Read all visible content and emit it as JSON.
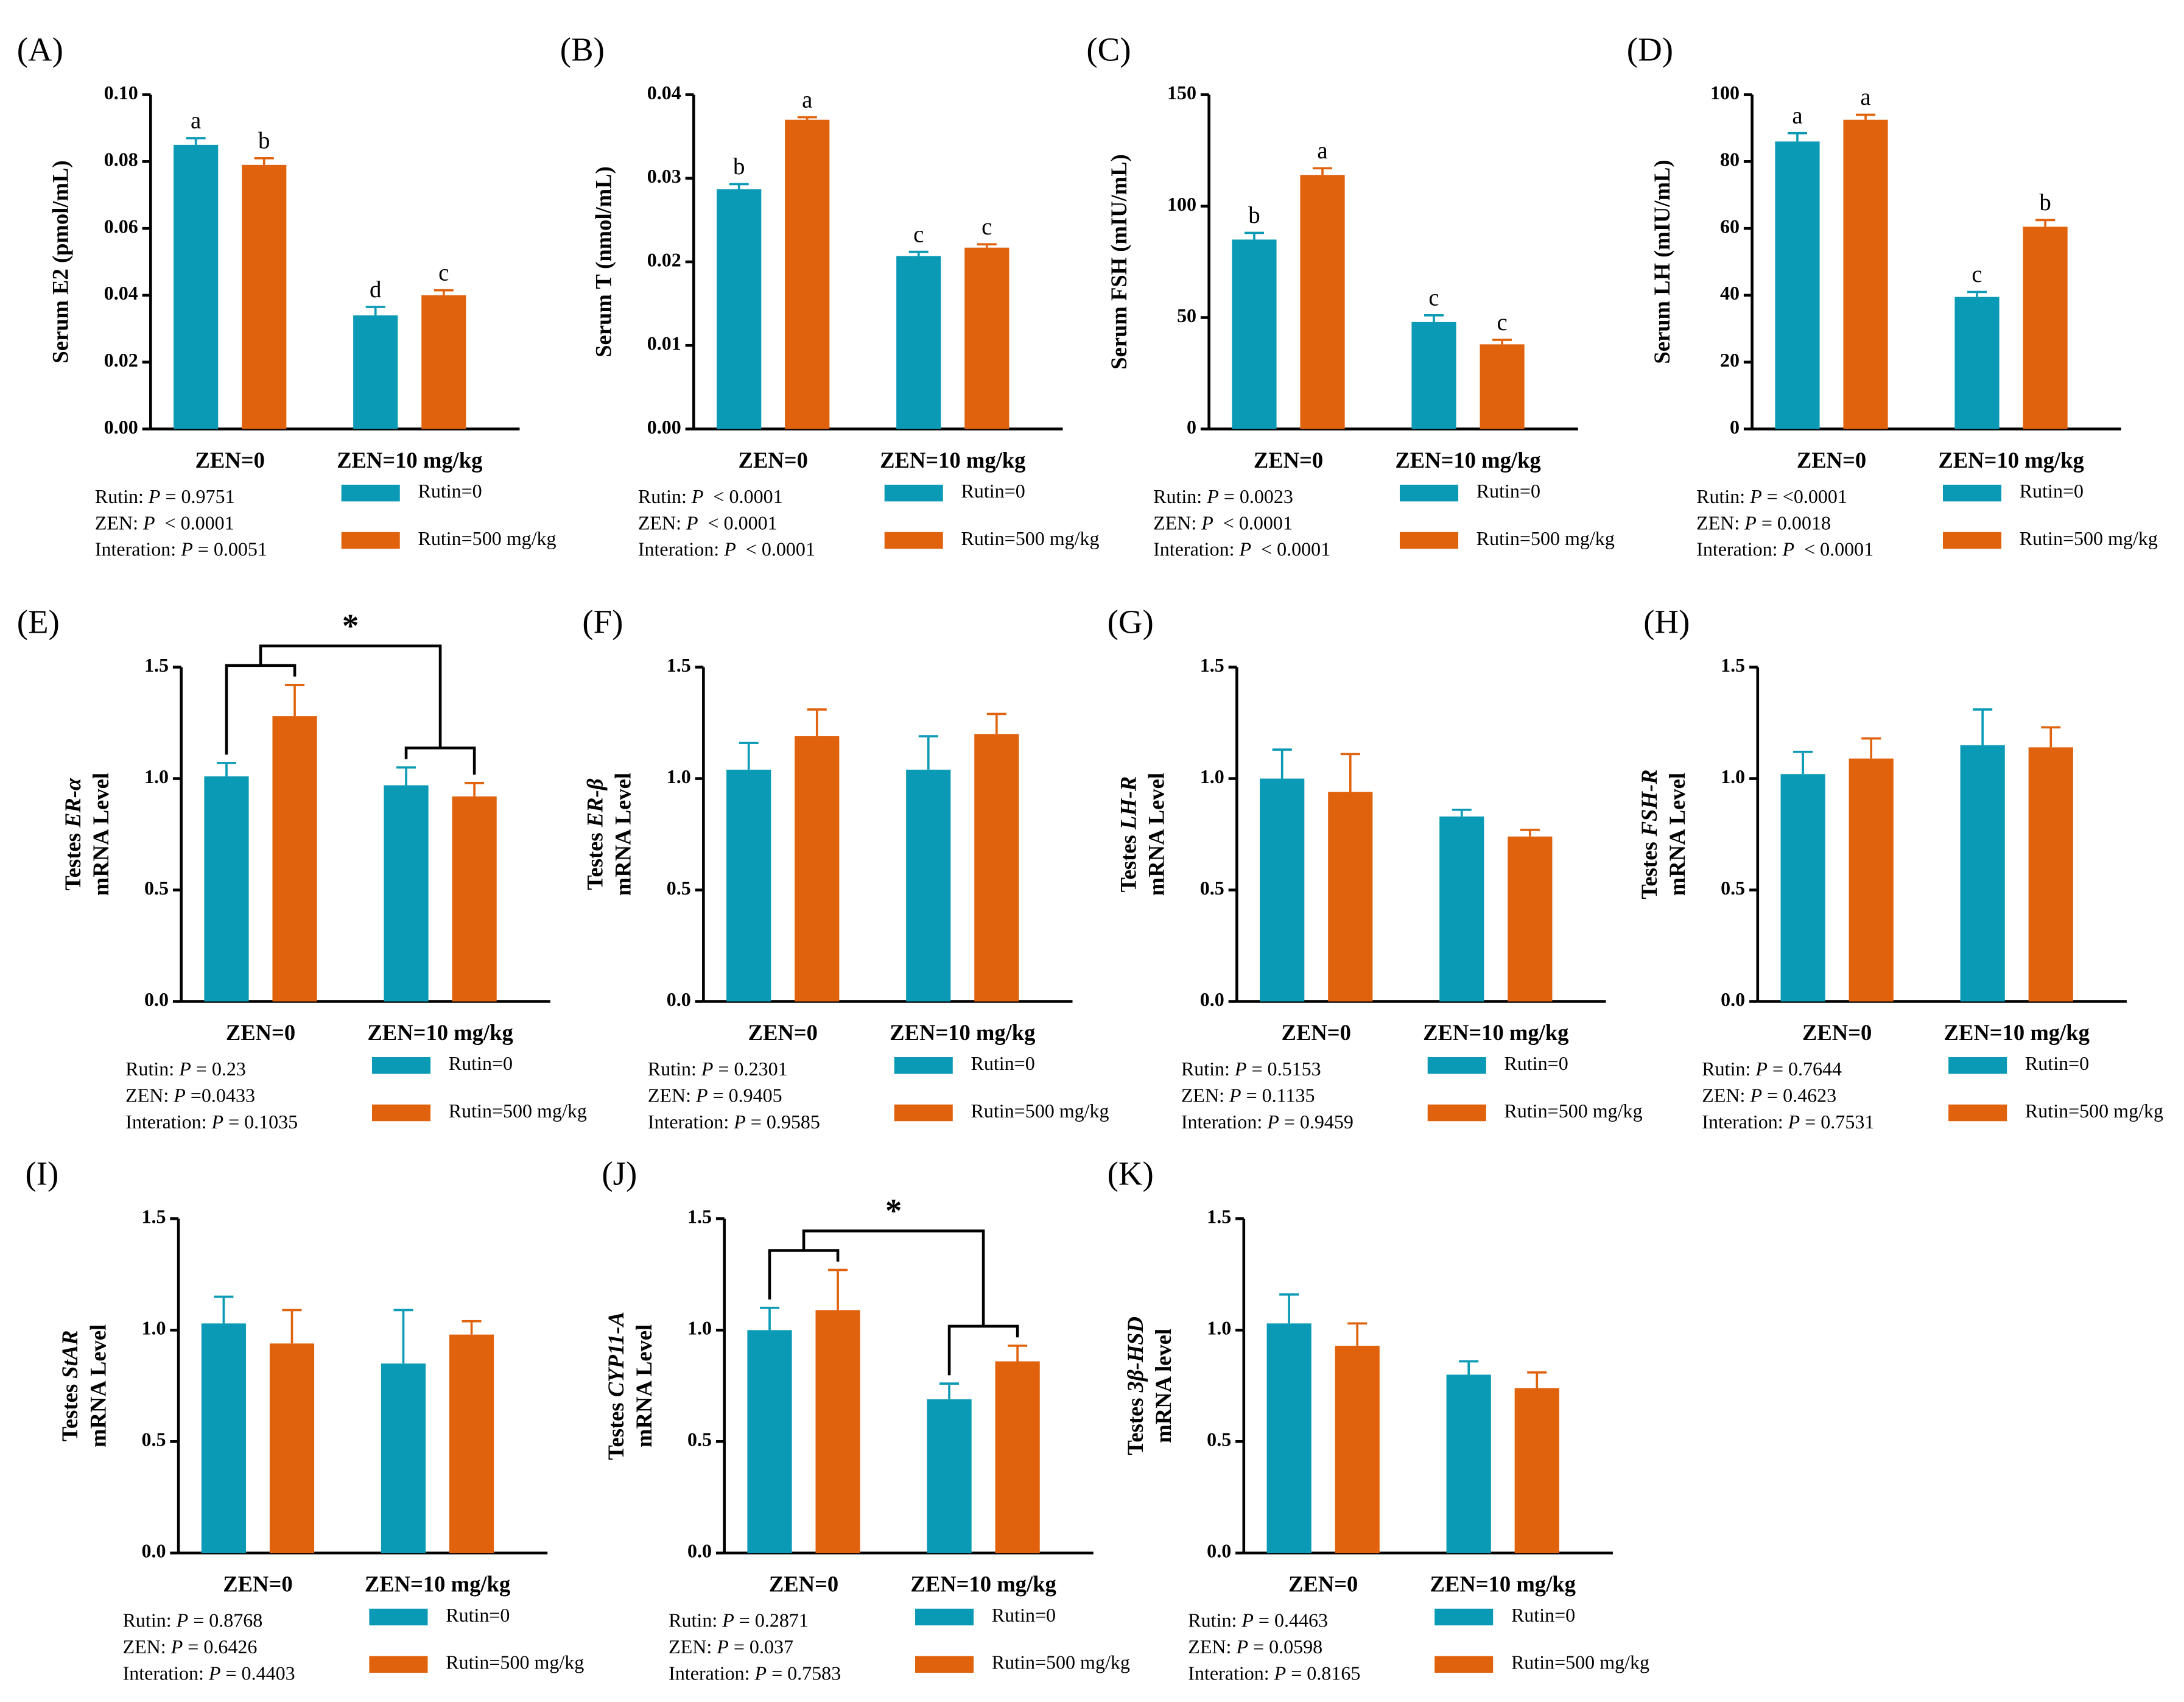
{
  "chart_data": [
    {
      "type": "bar",
      "panel": "(A)",
      "y_label": "Serum E2 (pmol/mL)",
      "categories": [
        "ZEN=0",
        "ZEN=10 mg/kg"
      ],
      "series": [
        {
          "name": "Rutin=0",
          "color": "#0a9ab5",
          "values": [
            0.085,
            0.034
          ],
          "errors": [
            0.002,
            0.0025
          ],
          "letters": [
            "a",
            "d"
          ]
        },
        {
          "name": "Rutin=500 mg/kg",
          "color": "#e0620d",
          "values": [
            0.079,
            0.04
          ],
          "errors": [
            0.002,
            0.0015
          ],
          "letters": [
            "b",
            "c"
          ]
        }
      ],
      "ylim": [
        0,
        0.1
      ],
      "yticks": [
        {
          "value": 0,
          "label": "0.00"
        },
        {
          "value": 0.02,
          "label": "0.02"
        },
        {
          "value": 0.04,
          "label": "0.04"
        },
        {
          "value": 0.06,
          "label": "0.06"
        },
        {
          "value": 0.08,
          "label": "0.08"
        },
        {
          "value": 0.1,
          "label": "0.10"
        }
      ],
      "stats": [
        [
          "Rutin: ",
          "P",
          " = 0.9751"
        ],
        [
          "ZEN: ",
          "P",
          "  < 0.0001"
        ],
        [
          "Interation: ",
          "P",
          " = 0.0051"
        ]
      ]
    },
    {
      "type": "bar",
      "panel": "(B)",
      "y_label": "Serum T (nmol/mL)",
      "categories": [
        "ZEN=0",
        "ZEN=10 mg/kg"
      ],
      "series": [
        {
          "name": "Rutin=0",
          "color": "#0a9ab5",
          "values": [
            0.0287,
            0.0207
          ],
          "errors": [
            0.0006,
            0.0005
          ],
          "letters": [
            "b",
            "c"
          ]
        },
        {
          "name": "Rutin=500 mg/kg",
          "color": "#e0620d",
          "values": [
            0.037,
            0.0217
          ],
          "errors": [
            0.0003,
            0.0004
          ],
          "letters": [
            "a",
            "c"
          ]
        }
      ],
      "ylim": [
        0,
        0.04
      ],
      "yticks": [
        {
          "value": 0,
          "label": "0.00"
        },
        0.01,
        0.02,
        0.03,
        0.04
      ],
      "stats": [
        [
          "Rutin: ",
          "P",
          "  < 0.0001"
        ],
        [
          "ZEN: ",
          "P",
          "  < 0.0001"
        ],
        [
          "Interation: ",
          "P",
          "  < 0.0001"
        ]
      ]
    },
    {
      "type": "bar",
      "panel": "(C)",
      "y_label": "Serum FSH (mIU/mL)",
      "categories": [
        "ZEN=0",
        "ZEN=10 mg/kg"
      ],
      "series": [
        {
          "name": "Rutin=0",
          "color": "#0a9ab5",
          "values": [
            85,
            48
          ],
          "errors": [
            3,
            3
          ],
          "letters": [
            "b",
            "c"
          ]
        },
        {
          "name": "Rutin=500 mg/kg",
          "color": "#e0620d",
          "values": [
            114,
            38
          ],
          "errors": [
            3,
            2
          ],
          "letters": [
            "a",
            "c"
          ]
        }
      ],
      "ylim": [
        0,
        150
      ],
      "yticks": [
        0,
        50,
        100,
        150
      ],
      "stats": [
        [
          "Rutin: ",
          "P",
          " = 0.0023"
        ],
        [
          "ZEN: ",
          "P",
          "  < 0.0001"
        ],
        [
          "Interation: ",
          "P",
          "  < 0.0001"
        ]
      ]
    },
    {
      "type": "bar",
      "panel": "(D)",
      "y_label": "Serum LH (mIU/mL)",
      "categories": [
        "ZEN=0",
        "ZEN=10 mg/kg"
      ],
      "series": [
        {
          "name": "Rutin=0",
          "color": "#0a9ab5",
          "values": [
            86,
            39.5
          ],
          "errors": [
            2.5,
            1.5
          ],
          "letters": [
            "a",
            "c"
          ]
        },
        {
          "name": "Rutin=500 mg/kg",
          "color": "#e0620d",
          "values": [
            92.5,
            60.5
          ],
          "errors": [
            1.5,
            2
          ],
          "letters": [
            "a",
            "b"
          ]
        }
      ],
      "ylim": [
        0,
        100
      ],
      "yticks": [
        0,
        20,
        40,
        60,
        80,
        100
      ],
      "stats": [
        [
          "Rutin: ",
          "P",
          " = <0.0001"
        ],
        [
          "ZEN: ",
          "P",
          " = 0.0018"
        ],
        [
          "Interation: ",
          "P",
          "  < 0.0001"
        ]
      ]
    },
    {
      "type": "bar",
      "panel": "(E)",
      "y_label": [
        "Testes ",
        "ER-α",
        "mRNA Level"
      ],
      "categories": [
        "ZEN=0",
        "ZEN=10 mg/kg"
      ],
      "series": [
        {
          "name": "Rutin=0",
          "color": "#0a9ab5",
          "values": [
            1.01,
            0.97
          ],
          "errors": [
            0.06,
            0.08
          ]
        },
        {
          "name": "Rutin=500 mg/kg",
          "color": "#e0620d",
          "values": [
            1.28,
            0.92
          ],
          "errors": [
            0.14,
            0.06
          ]
        }
      ],
      "ylim": [
        0,
        1.5
      ],
      "yticks": [
        {
          "value": 0,
          "label": "0.0"
        },
        0.5,
        {
          "value": 1,
          "label": "1.0"
        },
        1.5
      ],
      "significance": "*",
      "stats": [
        [
          "Rutin: ",
          "P",
          " = 0.23"
        ],
        [
          "ZEN: ",
          "P",
          " =0.0433"
        ],
        [
          "Interation: ",
          "P",
          " = 0.1035"
        ]
      ]
    },
    {
      "type": "bar",
      "panel": "(F)",
      "y_label": [
        "Testes ",
        "ER-β",
        "mRNA Level"
      ],
      "categories": [
        "ZEN=0",
        "ZEN=10 mg/kg"
      ],
      "series": [
        {
          "name": "Rutin=0",
          "color": "#0a9ab5",
          "values": [
            1.04,
            1.04
          ],
          "errors": [
            0.12,
            0.15
          ]
        },
        {
          "name": "Rutin=500 mg/kg",
          "color": "#e0620d",
          "values": [
            1.19,
            1.2
          ],
          "errors": [
            0.12,
            0.09
          ]
        }
      ],
      "ylim": [
        0,
        1.5
      ],
      "yticks": [
        {
          "value": 0,
          "label": "0.0"
        },
        0.5,
        {
          "value": 1,
          "label": "1.0"
        },
        1.5
      ],
      "stats": [
        [
          "Rutin: ",
          "P",
          " = 0.2301"
        ],
        [
          "ZEN: ",
          "P",
          " = 0.9405"
        ],
        [
          "Interation: ",
          "P",
          " = 0.9585"
        ]
      ]
    },
    {
      "type": "bar",
      "panel": "(G)",
      "y_label": [
        "Testes ",
        "LH-R",
        "mRNA Level"
      ],
      "categories": [
        "ZEN=0",
        "ZEN=10 mg/kg"
      ],
      "series": [
        {
          "name": "Rutin=0",
          "color": "#0a9ab5",
          "values": [
            1.0,
            0.83
          ],
          "errors": [
            0.13,
            0.03
          ]
        },
        {
          "name": "Rutin=500 mg/kg",
          "color": "#e0620d",
          "values": [
            0.94,
            0.74
          ],
          "errors": [
            0.17,
            0.03
          ]
        }
      ],
      "ylim": [
        0,
        1.5
      ],
      "yticks": [
        {
          "value": 0,
          "label": "0.0"
        },
        0.5,
        {
          "value": 1,
          "label": "1.0"
        },
        1.5
      ],
      "stats": [
        [
          "Rutin: ",
          "P",
          " = 0.5153"
        ],
        [
          "ZEN: ",
          "P",
          " = 0.1135"
        ],
        [
          "Interation: ",
          "P",
          " = 0.9459"
        ]
      ]
    },
    {
      "type": "bar",
      "panel": "(H)",
      "y_label": [
        "Testes ",
        "FSH-R",
        "mRNA Level"
      ],
      "categories": [
        "ZEN=0",
        "ZEN=10 mg/kg"
      ],
      "series": [
        {
          "name": "Rutin=0",
          "color": "#0a9ab5",
          "values": [
            1.02,
            1.15
          ],
          "errors": [
            0.1,
            0.16
          ]
        },
        {
          "name": "Rutin=500 mg/kg",
          "color": "#e0620d",
          "values": [
            1.09,
            1.14
          ],
          "errors": [
            0.09,
            0.09
          ]
        }
      ],
      "ylim": [
        0,
        1.5
      ],
      "yticks": [
        {
          "value": 0,
          "label": "0.0"
        },
        0.5,
        {
          "value": 1,
          "label": "1.0"
        },
        1.5
      ],
      "stats": [
        [
          "Rutin: ",
          "P",
          " = 0.7644"
        ],
        [
          "ZEN: ",
          "P",
          " = 0.4623"
        ],
        [
          "Interation: ",
          "P",
          " = 0.7531"
        ]
      ]
    },
    {
      "type": "bar",
      "panel": "(I)",
      "y_label": [
        "Testes ",
        "StAR",
        "mRNA Level"
      ],
      "categories": [
        "ZEN=0",
        "ZEN=10 mg/kg"
      ],
      "series": [
        {
          "name": "Rutin=0",
          "color": "#0a9ab5",
          "values": [
            1.03,
            0.85
          ],
          "errors": [
            0.12,
            0.24
          ]
        },
        {
          "name": "Rutin=500 mg/kg",
          "color": "#e0620d",
          "values": [
            0.94,
            0.98
          ],
          "errors": [
            0.15,
            0.06
          ]
        }
      ],
      "ylim": [
        0,
        1.5
      ],
      "yticks": [
        {
          "value": 0,
          "label": "0.0"
        },
        0.5,
        {
          "value": 1,
          "label": "1.0"
        },
        1.5
      ],
      "stats": [
        [
          "Rutin: ",
          "P",
          " = 0.8768"
        ],
        [
          "ZEN: ",
          "P",
          " = 0.6426"
        ],
        [
          "Interation: ",
          "P",
          " = 0.4403"
        ]
      ]
    },
    {
      "type": "bar",
      "panel": "(J)",
      "y_label": [
        "Testes ",
        "CYP11-A",
        "mRNA Level"
      ],
      "categories": [
        "ZEN=0",
        "ZEN=10 mg/kg"
      ],
      "series": [
        {
          "name": "Rutin=0",
          "color": "#0a9ab5",
          "values": [
            1.0,
            0.69
          ],
          "errors": [
            0.1,
            0.07
          ]
        },
        {
          "name": "Rutin=500 mg/kg",
          "color": "#e0620d",
          "values": [
            1.09,
            0.86
          ],
          "errors": [
            0.18,
            0.07
          ]
        }
      ],
      "ylim": [
        0,
        1.5
      ],
      "yticks": [
        {
          "value": 0,
          "label": "0.0"
        },
        0.5,
        {
          "value": 1,
          "label": "1.0"
        },
        1.5
      ],
      "significance": "*",
      "stats": [
        [
          "Rutin: ",
          "P",
          " = 0.2871"
        ],
        [
          "ZEN: ",
          "P",
          " = 0.037"
        ],
        [
          "Interation: ",
          "P",
          " = 0.7583"
        ]
      ]
    },
    {
      "type": "bar",
      "panel": "(K)",
      "y_label": [
        "Testes ",
        "3β-HSD",
        "mRNA level"
      ],
      "categories": [
        "ZEN=0",
        "ZEN=10 mg/kg"
      ],
      "series": [
        {
          "name": "Rutin=0",
          "color": "#0a9ab5",
          "values": [
            1.03,
            0.8
          ],
          "errors": [
            0.13,
            0.06
          ]
        },
        {
          "name": "Rutin=500 mg/kg",
          "color": "#e0620d",
          "values": [
            0.93,
            0.74
          ],
          "errors": [
            0.1,
            0.07
          ]
        }
      ],
      "ylim": [
        0,
        1.5
      ],
      "yticks": [
        {
          "value": 0,
          "label": "0.0"
        },
        0.5,
        {
          "value": 1,
          "label": "1.0"
        },
        1.5
      ],
      "stats": [
        [
          "Rutin: ",
          "P",
          " = 0.4463"
        ],
        [
          "ZEN: ",
          "P",
          " = 0.0598"
        ],
        [
          "Interation: ",
          "P",
          " = 0.8165"
        ]
      ]
    }
  ]
}
